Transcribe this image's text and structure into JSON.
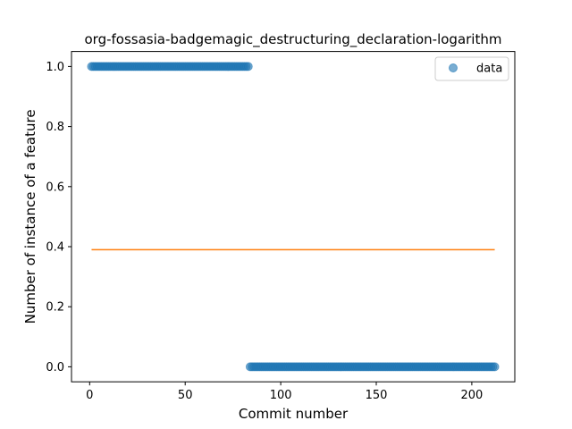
{
  "chart_data": {
    "type": "scatter",
    "title": "org-fossasia-badgemagic_destructuring_declaration-logarithm",
    "xlabel": "Commit number",
    "ylabel": "Number of instance of a feature",
    "xlim": [
      -9.5,
      222.5
    ],
    "ylim": [
      -0.05,
      1.05
    ],
    "xticks": [
      0,
      50,
      100,
      150,
      200
    ],
    "yticks": [
      0.0,
      0.2,
      0.4,
      0.6,
      0.8,
      1.0
    ],
    "xtick_labels": [
      "0",
      "50",
      "100",
      "150",
      "200"
    ],
    "ytick_labels": [
      "0.0",
      "0.2",
      "0.4",
      "0.6",
      "0.8",
      "1.0"
    ],
    "grid": false,
    "legend": {
      "position": "top-right",
      "entries": [
        "data"
      ]
    },
    "series": [
      {
        "name": "data",
        "kind": "scatter",
        "color": "#1f77b4",
        "alpha": 0.6,
        "segments": [
          {
            "x_start": 1,
            "x_end": 83,
            "y": 1.0
          },
          {
            "x_start": 84,
            "x_end": 212,
            "y": 0.0
          }
        ]
      },
      {
        "kind": "line",
        "color": "#ff7f0e",
        "x": [
          1,
          212
        ],
        "y": [
          0.39,
          0.39
        ]
      }
    ]
  }
}
